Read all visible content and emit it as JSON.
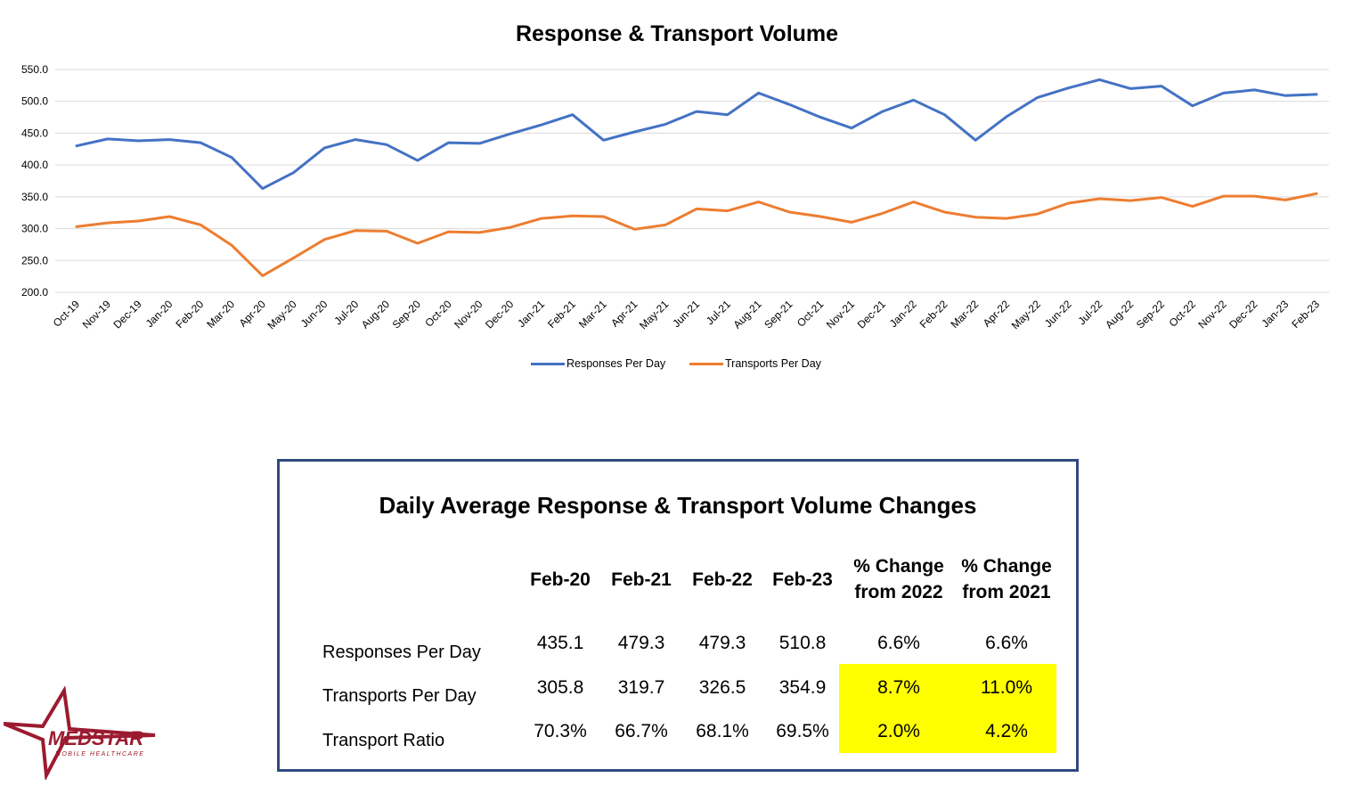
{
  "chart_data": {
    "type": "line",
    "title": "Response & Transport Volume",
    "categories": [
      "Oct-19",
      "Nov-19",
      "Dec-19",
      "Jan-20",
      "Feb-20",
      "Mar-20",
      "Apr-20",
      "May-20",
      "Jun-20",
      "Jul-20",
      "Aug-20",
      "Sep-20",
      "Oct-20",
      "Nov-20",
      "Dec-20",
      "Jan-21",
      "Feb-21",
      "Mar-21",
      "Apr-21",
      "May-21",
      "Jun-21",
      "Jul-21",
      "Aug-21",
      "Sep-21",
      "Oct-21",
      "Nov-21",
      "Dec-21",
      "Jan-22",
      "Feb-22",
      "Mar-22",
      "Apr-22",
      "May-22",
      "Jun-22",
      "Jul-22",
      "Aug-22",
      "Sep-22",
      "Oct-22",
      "Nov-22",
      "Dec-22",
      "Jan-23",
      "Feb-23"
    ],
    "series": [
      {
        "name": "Responses Per Day",
        "color": "#4472c4",
        "values": [
          430,
          441,
          438,
          440,
          435,
          412,
          363,
          388,
          427,
          440,
          432,
          407,
          435,
          434,
          449,
          463,
          479,
          439,
          452,
          464,
          484,
          479,
          513,
          495,
          475,
          458,
          484,
          502,
          479,
          439,
          476,
          506,
          521,
          534,
          520,
          524,
          493,
          513,
          518,
          509,
          511
        ]
      },
      {
        "name": "Transports Per Day",
        "color": "#ed7d31",
        "values": [
          303,
          309,
          312,
          319,
          306,
          274,
          226,
          254,
          283,
          297,
          296,
          277,
          295,
          294,
          302,
          316,
          320,
          319,
          299,
          306,
          331,
          328,
          342,
          326,
          319,
          310,
          324,
          342,
          326,
          318,
          316,
          323,
          340,
          347,
          344,
          349,
          335,
          351,
          351,
          345,
          355
        ]
      }
    ],
    "ylim": [
      200,
      550
    ],
    "yticks": [
      "550.0",
      "500.0",
      "450.0",
      "400.0",
      "350.0",
      "300.0",
      "250.0",
      "200.0"
    ],
    "grid": true,
    "legend_position": "bottom"
  },
  "table": {
    "title": "Daily Average Response & Transport Volume Changes",
    "columns": [
      "Feb-20",
      "Feb-21",
      "Feb-22",
      "Feb-23",
      "% Change from 2022",
      "% Change from 2021"
    ],
    "rows": [
      {
        "label": "Responses Per Day",
        "values": [
          "435.1",
          "479.3",
          "479.3",
          "510.8",
          "6.6%",
          "6.6%"
        ]
      },
      {
        "label": "Transports Per Day",
        "values": [
          "305.8",
          "319.7",
          "326.5",
          "354.9",
          "8.7%",
          "11.0%"
        ]
      },
      {
        "label": "Transport Ratio",
        "values": [
          "70.3%",
          "66.7%",
          "68.1%",
          "69.5%",
          "2.0%",
          "4.2%"
        ]
      }
    ],
    "highlight_color": "#ffff00",
    "border_color": "#2f4a7e"
  },
  "logo": {
    "text": "MEDSTAR",
    "subtext": "MOBILE HEALTHCARE",
    "color": "#9b1b30"
  }
}
